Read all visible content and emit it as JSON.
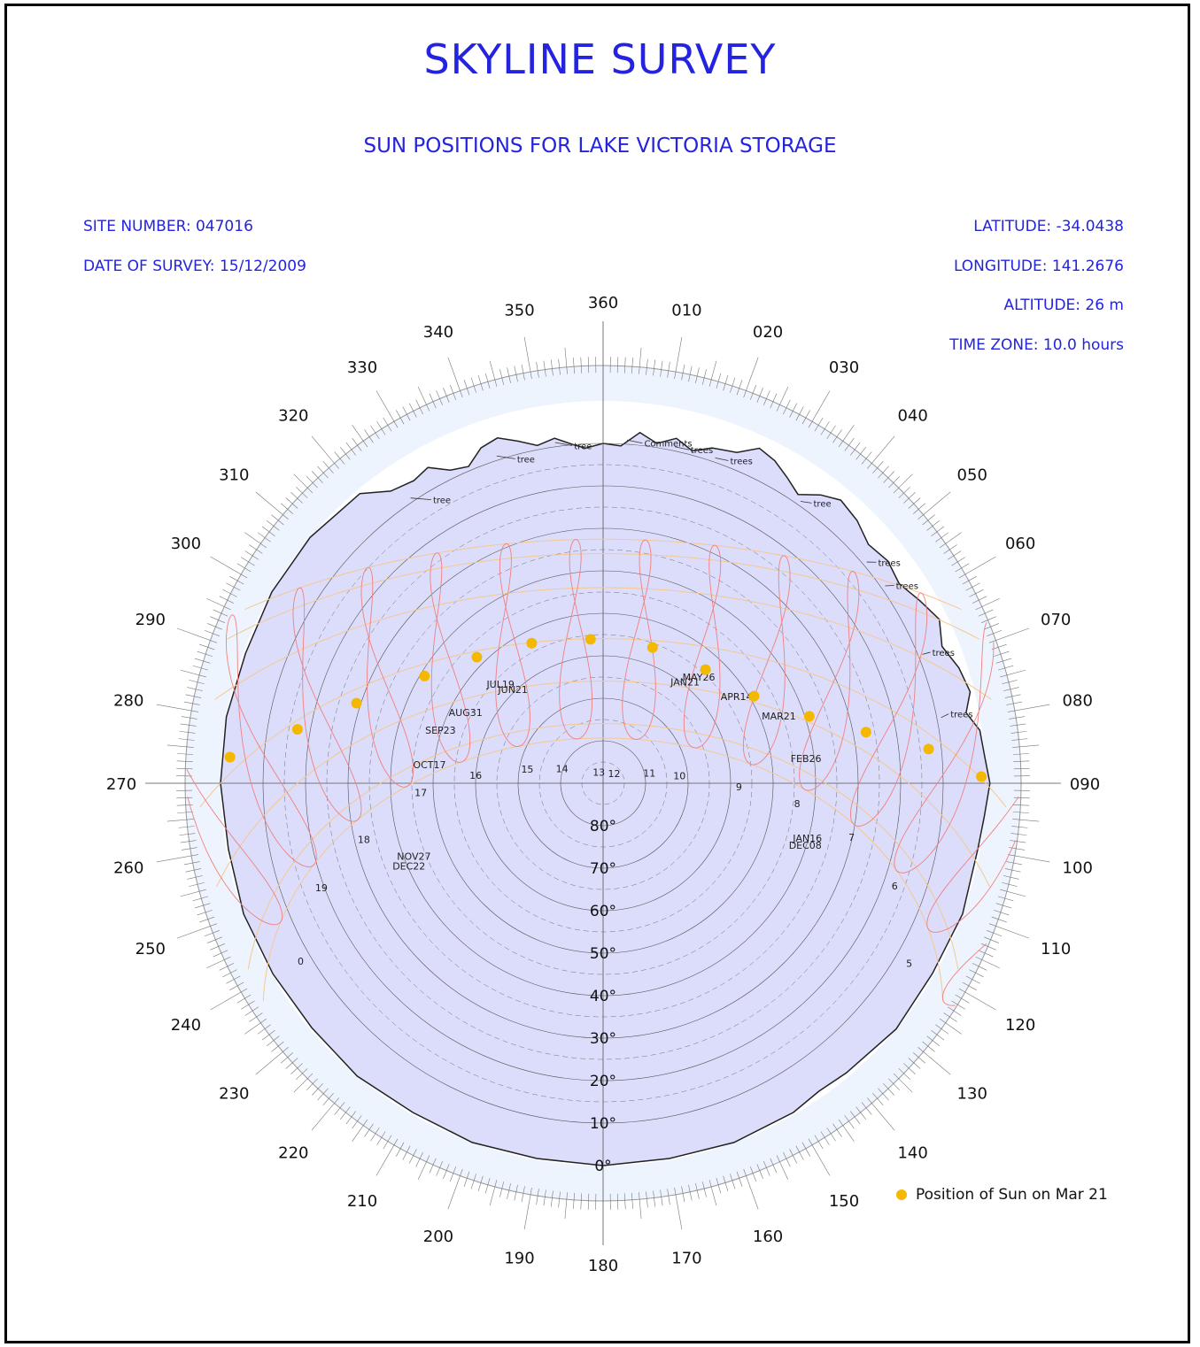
{
  "header": {
    "title": "SKYLINE SURVEY",
    "subtitle": "SUN POSITIONS FOR LAKE VICTORIA STORAGE"
  },
  "site": {
    "site_number": "SITE NUMBER: 047016",
    "date_of_survey": "DATE OF SURVEY: 15/12/2009",
    "latitude": "LATITUDE: -34.0438",
    "longitude": "LONGITUDE: 141.2676",
    "altitude": "ALTITUDE: 26 m",
    "time_zone": "TIME ZONE: 10.0 hours"
  },
  "legend": {
    "label": "Position of Sun on Mar 21"
  },
  "colors": {
    "text_blue": "#2323e0",
    "sky_fill": "#dcdcfb",
    "ring_fill": "#eef4fe",
    "sun_marker": "#f5b800",
    "analemma": "#f08080",
    "date_path": "#f5c890"
  },
  "chart_data": {
    "type": "polar",
    "azimuth_labels": [
      "360",
      "010",
      "020",
      "030",
      "040",
      "050",
      "060",
      "070",
      "080",
      "090",
      "100",
      "110",
      "120",
      "130",
      "140",
      "150",
      "160",
      "170",
      "180",
      "190",
      "200",
      "210",
      "220",
      "230",
      "240",
      "250",
      "260",
      "270",
      "280",
      "290",
      "300",
      "310",
      "320",
      "330",
      "340",
      "350"
    ],
    "elevation_labels": [
      "80°",
      "70°",
      "60°",
      "50°",
      "40°",
      "30°",
      "20°",
      "10°",
      "0°"
    ],
    "elevation_range": [
      0,
      90
    ],
    "skyline_annotations": [
      {
        "label": "Comments",
        "az": 4
      },
      {
        "label": "trees",
        "az": 12
      },
      {
        "label": "trees",
        "az": 19
      },
      {
        "label": "tree",
        "az": 326
      },
      {
        "label": "tree",
        "az": 342
      },
      {
        "label": "tree",
        "az": 352
      },
      {
        "label": "tree",
        "az": 35
      },
      {
        "label": "trees",
        "az": 50
      },
      {
        "label": "trees",
        "az": 55
      },
      {
        "label": "trees",
        "az": 68
      },
      {
        "label": "trees",
        "az": 79
      }
    ],
    "date_labels": [
      {
        "label": "JUN21",
        "az": 315,
        "el": 60
      },
      {
        "label": "JUL19",
        "az": 313,
        "el": 57
      },
      {
        "label": "JAN21",
        "az": 40,
        "el": 60
      },
      {
        "label": "MAY26",
        "az": 43,
        "el": 57
      },
      {
        "label": "AUG31",
        "az": 296,
        "el": 54
      },
      {
        "label": "APR14",
        "az": 58,
        "el": 53
      },
      {
        "label": "SEP23",
        "az": 287,
        "el": 50
      },
      {
        "label": "MAR21",
        "az": 70,
        "el": 46
      },
      {
        "label": "OCT17",
        "az": 275,
        "el": 49
      },
      {
        "label": "FEB26",
        "az": 84,
        "el": 42
      },
      {
        "label": "NOV27",
        "az": 248,
        "el": 42
      },
      {
        "label": "DEC22",
        "az": 246,
        "el": 40
      },
      {
        "label": "JAN16",
        "az": 106,
        "el": 40
      },
      {
        "label": "DEC08",
        "az": 108,
        "el": 40
      }
    ],
    "hour_labels": [
      {
        "label": "5",
        "az": 121,
        "el": 6
      },
      {
        "label": "6",
        "az": 110,
        "el": 17
      },
      {
        "label": "7",
        "az": 103,
        "el": 30
      },
      {
        "label": "8",
        "az": 97,
        "el": 44
      },
      {
        "label": "9",
        "az": 93,
        "el": 58
      },
      {
        "label": "10",
        "az": 87,
        "el": 72
      },
      {
        "label": "11",
        "az": 82,
        "el": 79
      },
      {
        "label": "12",
        "az": 60,
        "el": 87
      },
      {
        "label": "13",
        "az": 330,
        "el": 88
      },
      {
        "label": "14",
        "az": 285,
        "el": 80
      },
      {
        "label": "15",
        "az": 278,
        "el": 72
      },
      {
        "label": "16",
        "az": 272,
        "el": 60
      },
      {
        "label": "17",
        "az": 266,
        "el": 47
      },
      {
        "label": "18",
        "az": 256,
        "el": 32
      },
      {
        "label": "19",
        "az": 249,
        "el": 19
      },
      {
        "label": "0",
        "az": 239,
        "el": 7
      }
    ],
    "sun_positions_mar21": [
      {
        "hour": 6,
        "az": 89,
        "el": 1
      },
      {
        "hour": 7,
        "az": 84,
        "el": 13
      },
      {
        "hour": 8,
        "az": 79,
        "el": 27
      },
      {
        "hour": 9,
        "az": 72,
        "el": 39
      },
      {
        "hour": 10,
        "az": 60,
        "el": 49
      },
      {
        "hour": 11,
        "az": 42,
        "el": 54
      },
      {
        "hour": 12,
        "az": 20,
        "el": 56
      },
      {
        "hour": 13,
        "az": 355,
        "el": 56
      },
      {
        "hour": 14,
        "az": 333,
        "el": 53
      },
      {
        "hour": 15,
        "az": 315,
        "el": 48
      },
      {
        "hour": 16,
        "az": 301,
        "el": 41
      },
      {
        "hour": 17,
        "az": 288,
        "el": 29
      },
      {
        "hour": 18,
        "az": 280,
        "el": 17
      },
      {
        "hour": 19,
        "az": 274,
        "el": 2
      }
    ]
  }
}
